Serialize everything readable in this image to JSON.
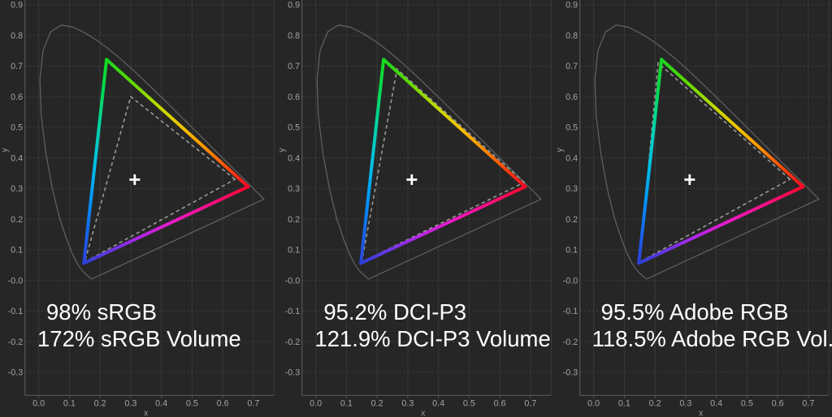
{
  "style": {
    "background": "#262626",
    "grid_color_v": "#383838",
    "grid_color_h": "#414141",
    "axis_color": "#565656",
    "plot_border_color": "#3a3a3a",
    "tick_label_color": "#a3a3a3",
    "axis_title_color": "#9a9a9a",
    "locus_color": "#5f5f5f",
    "reference_color": "#989898",
    "white_point_color": "#ffffff",
    "caption_color": "#ffffff",
    "edge_gradients": {
      "left": [
        [
          0,
          "#2b40d8"
        ],
        [
          0.16,
          "#1567ee"
        ],
        [
          0.34,
          "#009df5"
        ],
        [
          0.5,
          "#00c2e2"
        ],
        [
          0.68,
          "#00d2a4"
        ],
        [
          0.84,
          "#00d955"
        ],
        [
          1,
          "#17d81f"
        ]
      ],
      "right": [
        [
          0,
          "#17d81f"
        ],
        [
          0.18,
          "#5fda00"
        ],
        [
          0.38,
          "#c3da00"
        ],
        [
          0.54,
          "#f3c300"
        ],
        [
          0.7,
          "#ff9100"
        ],
        [
          0.85,
          "#ff4b07"
        ],
        [
          1,
          "#fe0725"
        ]
      ],
      "bottom": [
        [
          0,
          "#fe0725"
        ],
        [
          0.22,
          "#fb0f85"
        ],
        [
          0.45,
          "#e91ac4"
        ],
        [
          0.65,
          "#b426e8"
        ],
        [
          0.82,
          "#6f35e5"
        ],
        [
          1,
          "#2b40d8"
        ]
      ]
    }
  },
  "axes": {
    "x_title": "x",
    "y_title": "y",
    "x_ticks": [
      "0.0",
      "0.1",
      "0.2",
      "0.3",
      "0.4",
      "0.5",
      "0.6",
      "0.7"
    ],
    "y_ticks": [
      "0.9",
      "0.8",
      "0.7",
      "0.6",
      "0.5",
      "0.4",
      "0.3",
      "0.2",
      "0.1",
      "-0.0",
      "-0.1",
      "-0.2",
      "-0.3"
    ],
    "xlim": [
      -0.047,
      0.78
    ],
    "ylim": [
      -0.375,
      0.915
    ],
    "grid": true
  },
  "spectral_locus": [
    [
      0.1741,
      0.005
    ],
    [
      0.174,
      0.005
    ],
    [
      0.1733,
      0.0048
    ],
    [
      0.1726,
      0.0048
    ],
    [
      0.1714,
      0.0051
    ],
    [
      0.1689,
      0.0069
    ],
    [
      0.1644,
      0.0109
    ],
    [
      0.1611,
      0.0138
    ],
    [
      0.1566,
      0.0177
    ],
    [
      0.151,
      0.0227
    ],
    [
      0.144,
      0.0297
    ],
    [
      0.1355,
      0.0399
    ],
    [
      0.1241,
      0.0578
    ],
    [
      0.1096,
      0.0868
    ],
    [
      0.0913,
      0.1327
    ],
    [
      0.0687,
      0.2007
    ],
    [
      0.0454,
      0.295
    ],
    [
      0.0235,
      0.4127
    ],
    [
      0.0082,
      0.5384
    ],
    [
      0.0039,
      0.6548
    ],
    [
      0.0139,
      0.7502
    ],
    [
      0.0389,
      0.812
    ],
    [
      0.0743,
      0.8338
    ],
    [
      0.1142,
      0.8262
    ],
    [
      0.1547,
      0.8059
    ],
    [
      0.1929,
      0.7816
    ],
    [
      0.2296,
      0.7543
    ],
    [
      0.2658,
      0.7243
    ],
    [
      0.3016,
      0.6923
    ],
    [
      0.3373,
      0.6589
    ],
    [
      0.3731,
      0.6245
    ],
    [
      0.4087,
      0.5896
    ],
    [
      0.4441,
      0.5547
    ],
    [
      0.4788,
      0.5202
    ],
    [
      0.5125,
      0.4866
    ],
    [
      0.5448,
      0.4544
    ],
    [
      0.5752,
      0.4242
    ],
    [
      0.6029,
      0.3965
    ],
    [
      0.627,
      0.3725
    ],
    [
      0.6482,
      0.3514
    ],
    [
      0.6658,
      0.334
    ],
    [
      0.6801,
      0.3197
    ],
    [
      0.6915,
      0.3083
    ],
    [
      0.7006,
      0.2993
    ],
    [
      0.7079,
      0.292
    ],
    [
      0.714,
      0.2859
    ],
    [
      0.719,
      0.2809
    ],
    [
      0.723,
      0.277
    ],
    [
      0.726,
      0.274
    ],
    [
      0.7347,
      0.2653
    ]
  ],
  "chart_data": [
    {
      "type": "line",
      "title": "98% sRGB / 172% sRGB Volume",
      "captions": [
        "98% sRGB",
        "172% sRGB Volume"
      ],
      "coverage_percent": 98,
      "volume_percent": 172,
      "reference_name": "sRGB",
      "reference_gamut": {
        "red": [
          0.64,
          0.33
        ],
        "green": [
          0.3,
          0.6
        ],
        "blue": [
          0.15,
          0.06
        ]
      },
      "measured_gamut": {
        "red": [
          0.683,
          0.306
        ],
        "green": [
          0.221,
          0.721
        ],
        "blue": [
          0.147,
          0.056
        ]
      },
      "white_point": [
        0.313,
        0.329
      ],
      "xlabel": "x",
      "ylabel": "y"
    },
    {
      "type": "line",
      "title": "95.2% DCI-P3 / 121.9% DCI-P3 Volume",
      "captions": [
        "95.2% DCI-P3",
        "121.9% DCI-P3 Volume"
      ],
      "coverage_percent": 95.2,
      "volume_percent": 121.9,
      "reference_name": "DCI-P3",
      "reference_gamut": {
        "red": [
          0.68,
          0.32
        ],
        "green": [
          0.265,
          0.69
        ],
        "blue": [
          0.15,
          0.06
        ]
      },
      "measured_gamut": {
        "red": [
          0.683,
          0.306
        ],
        "green": [
          0.221,
          0.721
        ],
        "blue": [
          0.147,
          0.056
        ]
      },
      "white_point": [
        0.313,
        0.329
      ],
      "xlabel": "x",
      "ylabel": "y"
    },
    {
      "type": "line",
      "title": "95.5% Adobe RGB / 118.5% Adobe RGB Vol.",
      "captions": [
        "95.5% Adobe RGB",
        "118.5% Adobe RGB Vol."
      ],
      "coverage_percent": 95.5,
      "volume_percent": 118.5,
      "reference_name": "Adobe RGB",
      "reference_gamut": {
        "red": [
          0.64,
          0.33
        ],
        "green": [
          0.21,
          0.71
        ],
        "blue": [
          0.15,
          0.06
        ]
      },
      "measured_gamut": {
        "red": [
          0.683,
          0.306
        ],
        "green": [
          0.221,
          0.721
        ],
        "blue": [
          0.147,
          0.056
        ]
      },
      "white_point": [
        0.313,
        0.329
      ],
      "xlabel": "x",
      "ylabel": "y"
    }
  ]
}
